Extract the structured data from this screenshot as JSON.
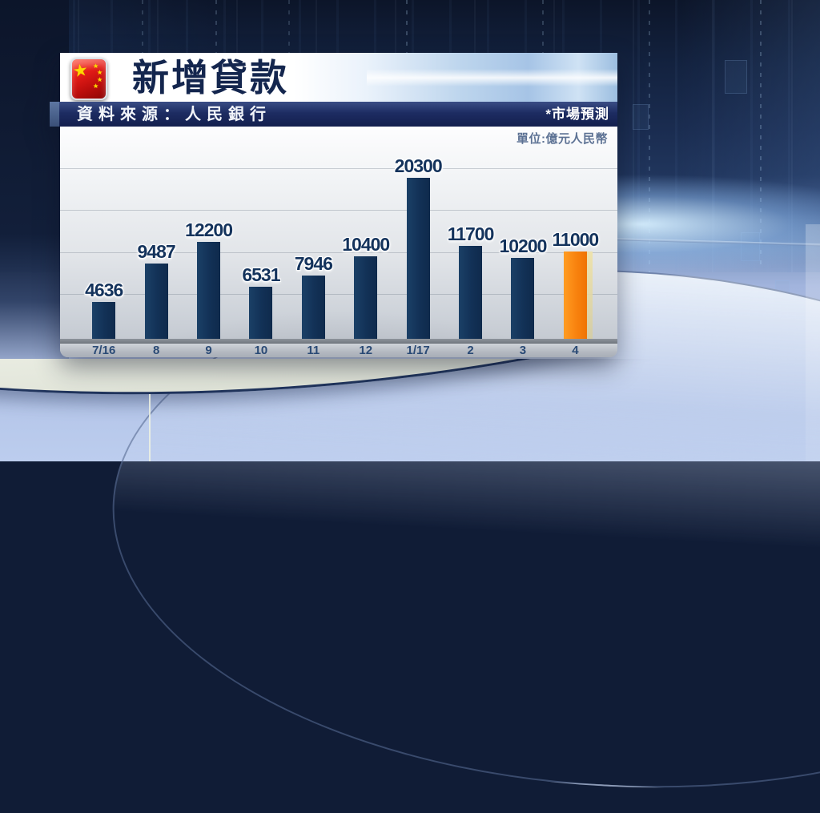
{
  "header": {
    "title": "新增貸款",
    "flag_icon": "china-flag-icon"
  },
  "source_bar": {
    "label": "資料來源：人民銀行",
    "forecast_note": "*市場預測"
  },
  "unit_label": "單位:億元人民幣",
  "chart_data": {
    "type": "bar",
    "title": "新增貸款",
    "source": "人民銀行",
    "unit": "億元人民幣",
    "categories": [
      "7/16",
      "8",
      "9",
      "10",
      "11",
      "12",
      "1/17",
      "2",
      "3",
      "4"
    ],
    "values": [
      4636,
      9487,
      12200,
      6531,
      7946,
      10400,
      20300,
      11700,
      10200,
      11000
    ],
    "highlight_index": 9,
    "highlight_meaning": "市場預測",
    "ylim": [
      0,
      20300
    ],
    "bar_color": "#123156",
    "highlight_color": "#f8820e",
    "value_label_color": "#14335c",
    "gridlines": true,
    "gridline_count": 4,
    "legend_position": "none"
  }
}
